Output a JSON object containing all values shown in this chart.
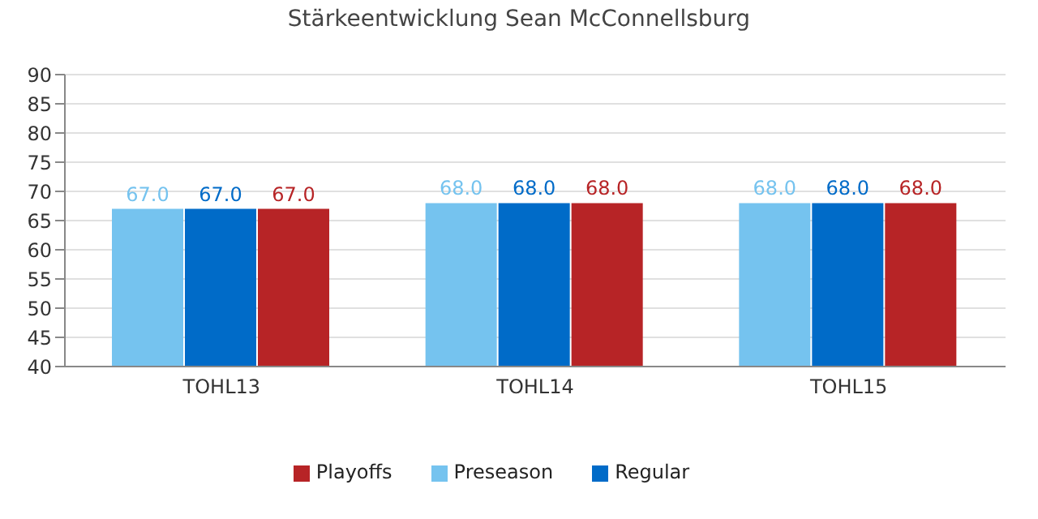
{
  "chart_data": {
    "type": "bar",
    "title": "Stärkeentwicklung Sean McConnellsburg",
    "categories": [
      "TOHL13",
      "TOHL14",
      "TOHL15"
    ],
    "series": [
      {
        "name": "Preseason",
        "color": "#75c3ef",
        "values": [
          67,
          68,
          68
        ],
        "value_labels": [
          "67.0",
          "68.0",
          "68.0"
        ]
      },
      {
        "name": "Regular",
        "color": "#006bc8",
        "values": [
          67,
          68,
          68
        ],
        "value_labels": [
          "67.0",
          "68.0",
          "68.0"
        ]
      },
      {
        "name": "Playoffs",
        "color": "#b72426",
        "values": [
          67,
          68,
          68
        ],
        "value_labels": [
          "67.0",
          "68.0",
          "68.0"
        ]
      }
    ],
    "ylim": [
      40,
      90
    ],
    "yticks": [
      40,
      45,
      50,
      55,
      60,
      65,
      70,
      75,
      80,
      85,
      90
    ],
    "grid": "y",
    "legend": "bottom"
  }
}
